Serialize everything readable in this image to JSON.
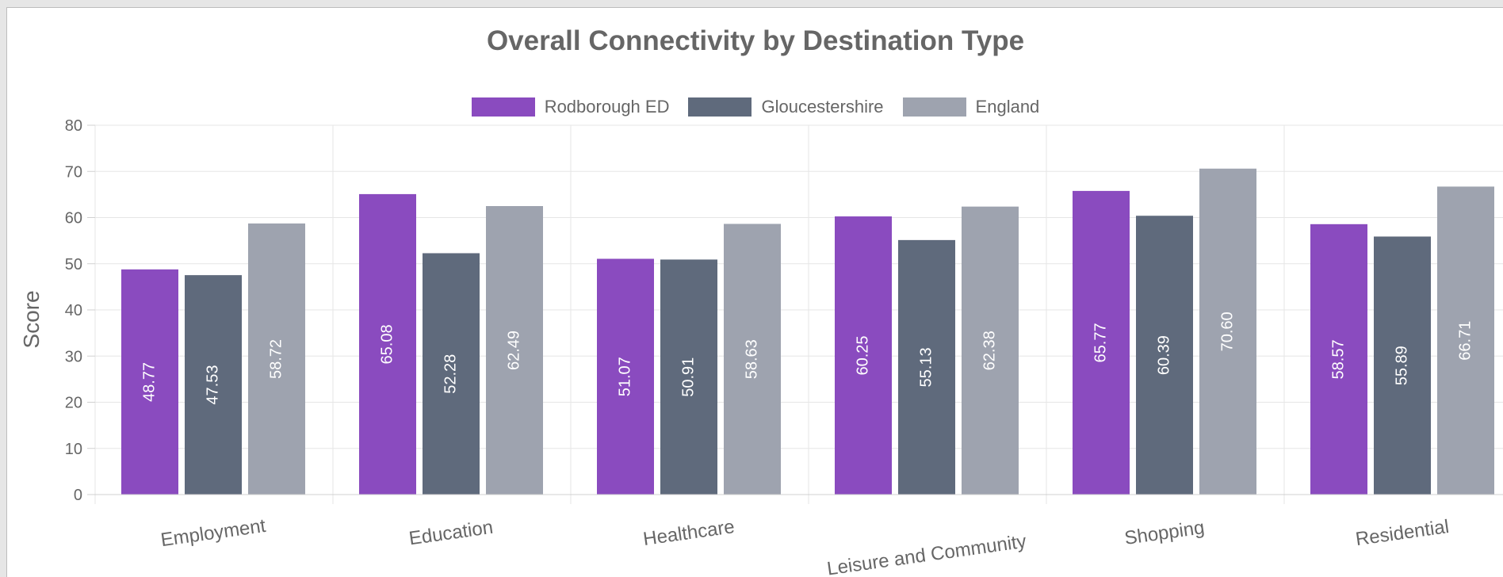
{
  "chart_data": {
    "type": "bar",
    "title": "Overall Connectivity by Destination Type",
    "ylabel": "Score",
    "xlabel": "",
    "ylim": [
      0,
      80
    ],
    "yticks": [
      0,
      10,
      20,
      30,
      40,
      50,
      60,
      70,
      80
    ],
    "grid": true,
    "legend_position": "top",
    "categories": [
      "Employment",
      "Education",
      "Healthcare",
      "Leisure and Community",
      "Shopping",
      "Residential"
    ],
    "series": [
      {
        "name": "Rodborough ED",
        "color": "#8a4bbf",
        "values": [
          48.77,
          65.08,
          51.07,
          60.25,
          65.77,
          58.57
        ],
        "labels": [
          "48.77",
          "65.08",
          "51.07",
          "60.25",
          "65.77",
          "58.57"
        ]
      },
      {
        "name": "Gloucestershire",
        "color": "#5f6a7c",
        "values": [
          47.53,
          52.28,
          50.91,
          55.13,
          60.39,
          55.89
        ],
        "labels": [
          "47.53",
          "52.28",
          "50.91",
          "55.13",
          "60.39",
          "55.89"
        ]
      },
      {
        "name": "England",
        "color": "#9ea3af",
        "values": [
          58.72,
          62.49,
          58.63,
          62.38,
          70.6,
          66.71
        ],
        "labels": [
          "58.72",
          "62.49",
          "58.63",
          "62.38",
          "70.60",
          "66.71"
        ]
      }
    ]
  }
}
